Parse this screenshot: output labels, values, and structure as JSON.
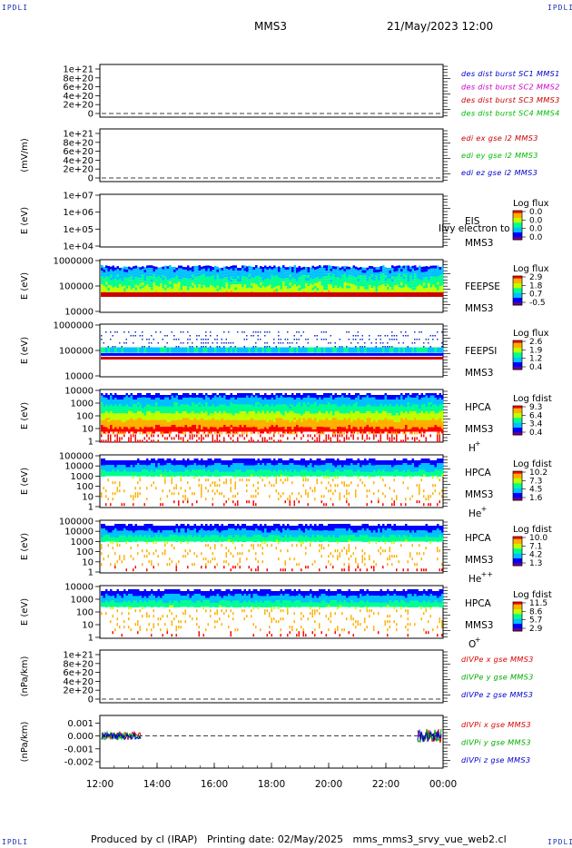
{
  "corner_label": "IPDLI",
  "header": {
    "title": "MMS3",
    "date": "21/May/2023 12:00"
  },
  "footer": {
    "produced": "Produced by cl (IRAP)",
    "printing": "Printing date: 02/May/2025",
    "script": "mms_mms3_srvy_vue_web2.cl"
  },
  "colors": {
    "mms1": "#0000cc",
    "mms2": "#cc00cc",
    "mms3": "#cc0000",
    "mms4": "#00bb00",
    "x": "#dd0000",
    "y": "#00aa00",
    "z": "#0000cc"
  },
  "colormap": [
    "#7a007a",
    "#0000ff",
    "#00c0ff",
    "#00ff90",
    "#c0ff00",
    "#ffb000",
    "#ff0000"
  ],
  "chart_data": [
    {
      "type": "line",
      "id": "dist",
      "ylabel": "",
      "yticks": [
        "1e+21",
        "8e+20",
        "6e+20",
        "4e+20",
        "2e+20",
        "0"
      ],
      "legend": [
        "des dist burst SC1 MMS1",
        "des dist burst SC2 MMS2",
        "des dist burst SC3 MMS3",
        "des dist burst SC4 MMS4"
      ],
      "legend_colors": [
        "mms1",
        "mms2",
        "mms3",
        "mms4"
      ]
    },
    {
      "type": "line",
      "id": "edi",
      "ylabel": "(mV/m)",
      "yticks": [
        "1e+21",
        "8e+20",
        "6e+20",
        "4e+20",
        "2e+20",
        "0"
      ],
      "legend": [
        "edi ex gse l2 MMS3",
        "edi ey gse l2 MMS3",
        "edi ez gse l2 MMS3"
      ],
      "legend_colors": [
        "mms3",
        "mms4",
        "mms1"
      ]
    },
    {
      "type": "heatmap",
      "id": "eis",
      "ylabel": "E (eV)",
      "yticks": [
        "1e+07",
        "1e+06",
        "1e+05",
        "1e+04"
      ],
      "labels": [
        "EIS",
        "MMS3"
      ],
      "overlay": "Ilvy electron to",
      "cb_title": "Log flux",
      "cb_ticks": [
        "0.0",
        "0.0",
        "0.0",
        "0.0"
      ]
    },
    {
      "type": "heatmap",
      "id": "feepse",
      "ylabel": "E (eV)",
      "yticks": [
        "1000000",
        "100000",
        "10000"
      ],
      "labels": [
        "FEEPSE",
        "MMS3"
      ],
      "cb_title": "Log flux",
      "cb_ticks": [
        "2.9",
        "1.8",
        "0.7",
        "-0.5"
      ]
    },
    {
      "type": "heatmap",
      "id": "feepsi",
      "ylabel": "E (eV)",
      "yticks": [
        "1000000",
        "100000",
        "10000"
      ],
      "labels": [
        "FEEPSI",
        "MMS3"
      ],
      "cb_title": "Log flux",
      "cb_ticks": [
        "2.6",
        "1.9",
        "1.2",
        "0.4"
      ]
    },
    {
      "type": "heatmap",
      "id": "hpca_h",
      "ylabel": "E (eV)",
      "yticks": [
        "10000",
        "1000",
        "100",
        "10",
        "1"
      ],
      "labels": [
        "HPCA",
        "MMS3"
      ],
      "species": "H",
      "charge": "+",
      "cb_title": "Log fdist",
      "cb_ticks": [
        "9.3",
        "6.4",
        "3.4",
        "0.4"
      ]
    },
    {
      "type": "heatmap",
      "id": "hpca_he1",
      "ylabel": "E (eV)",
      "yticks": [
        "100000",
        "10000",
        "1000",
        "100",
        "10",
        "1"
      ],
      "labels": [
        "HPCA",
        "MMS3"
      ],
      "species": "He",
      "charge": "+",
      "cb_title": "Log fdist",
      "cb_ticks": [
        "10.2",
        "7.3",
        "4.5",
        "1.6"
      ]
    },
    {
      "type": "heatmap",
      "id": "hpca_he2",
      "ylabel": "E (eV)",
      "yticks": [
        "100000",
        "10000",
        "1000",
        "100",
        "10",
        "1"
      ],
      "labels": [
        "HPCA",
        "MMS3"
      ],
      "species": "He",
      "charge": "++",
      "cb_title": "Log fdist",
      "cb_ticks": [
        "10.0",
        "7.1",
        "4.2",
        "1.3"
      ]
    },
    {
      "type": "heatmap",
      "id": "hpca_o",
      "ylabel": "E (eV)",
      "yticks": [
        "10000",
        "1000",
        "100",
        "10",
        "1"
      ],
      "labels": [
        "HPCA",
        "MMS3"
      ],
      "species": "O",
      "charge": "+",
      "cb_title": "Log fdist",
      "cb_ticks": [
        "11.5",
        "8.6",
        "5.7",
        "2.9"
      ]
    },
    {
      "type": "line",
      "id": "divpe",
      "ylabel": "(nPa/km)",
      "yticks": [
        "1e+21",
        "8e+20",
        "6e+20",
        "4e+20",
        "2e+20",
        "0"
      ],
      "legend": [
        "dIVPe x gse MMS3",
        "dIVPe y gse MMS3",
        "dIVPe z gse MMS3"
      ],
      "legend_colors": [
        "x",
        "y",
        "z"
      ]
    },
    {
      "type": "line",
      "id": "divpi",
      "ylabel": "(nPa/km)",
      "yticks": [
        "0.001",
        "0.000",
        "-0.001",
        "-0.002"
      ],
      "ylim": [
        -0.0025,
        0.0016
      ],
      "legend": [
        "dIVPi x gse MMS3",
        "dIVPi y gse MMS3",
        "dIVPi z gse MMS3"
      ],
      "legend_colors": [
        "x",
        "y",
        "z"
      ]
    }
  ],
  "xaxis": {
    "ticks": [
      "12:00",
      "14:00",
      "16:00",
      "18:00",
      "20:00",
      "22:00",
      "00:00"
    ]
  }
}
